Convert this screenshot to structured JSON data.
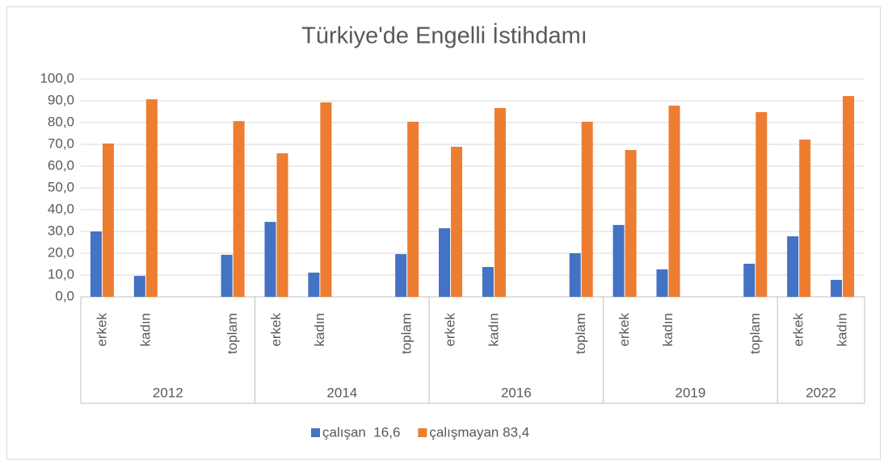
{
  "chart_data": {
    "type": "bar",
    "title": "Türkiye'de Engelli İstihdamı",
    "groups": [
      {
        "name": "2012",
        "categories": [
          "erkek",
          "kadın",
          null,
          "toplam"
        ]
      },
      {
        "name": "2014",
        "categories": [
          "erkek",
          "kadın",
          null,
          "toplam"
        ]
      },
      {
        "name": "2016",
        "categories": [
          "erkek",
          "kadın",
          null,
          "toplam"
        ]
      },
      {
        "name": "2019",
        "categories": [
          "erkek",
          "kadın",
          null,
          "toplam"
        ]
      },
      {
        "name": "2022",
        "categories": [
          "erkek",
          "kadın"
        ]
      }
    ],
    "series": [
      {
        "name": "çalışan  16,6",
        "color": "#4472c4",
        "values": [
          30.0,
          9.6,
          null,
          19.3,
          34.4,
          11.1,
          null,
          19.6,
          31.5,
          13.7,
          null,
          20.0,
          33.0,
          12.6,
          null,
          15.2,
          27.8,
          7.8
        ]
      },
      {
        "name": "çalışmayan 83,4",
        "color": "#ed7d31",
        "values": [
          70.4,
          90.7,
          null,
          80.7,
          65.9,
          89.3,
          null,
          80.4,
          68.9,
          86.7,
          null,
          80.4,
          67.4,
          87.8,
          null,
          84.8,
          72.2,
          92.2
        ]
      }
    ],
    "ylim": [
      0,
      100
    ],
    "yticks": [
      {
        "value": 0,
        "label": "0,0"
      },
      {
        "value": 10,
        "label": "10,0"
      },
      {
        "value": 20,
        "label": "20,0"
      },
      {
        "value": 30,
        "label": "30,0"
      },
      {
        "value": 40,
        "label": "40,0"
      },
      {
        "value": 50,
        "label": "50,0"
      },
      {
        "value": 60,
        "label": "60,0"
      },
      {
        "value": 70,
        "label": "70,0"
      },
      {
        "value": 80,
        "label": "80,0"
      },
      {
        "value": 90,
        "label": "90,0"
      },
      {
        "value": 100,
        "label": "100,0"
      }
    ],
    "grid": true,
    "legend": "bottom"
  }
}
